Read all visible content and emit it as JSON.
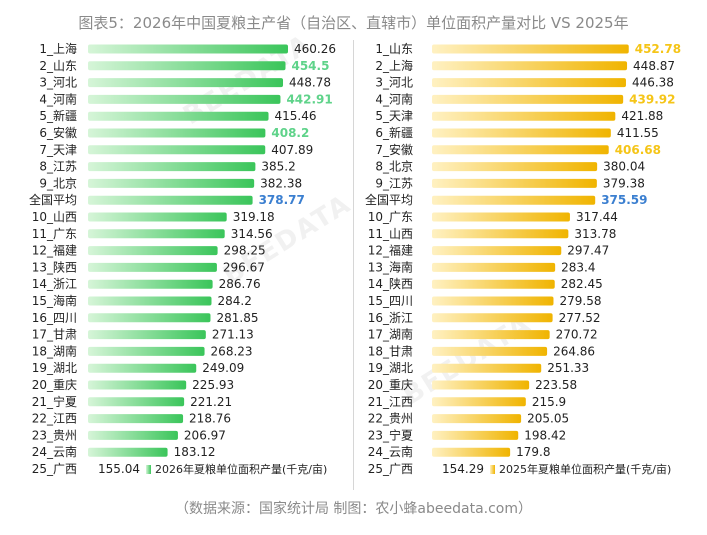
{
  "title": "图表5：2026年中国夏粮主产省（自治区、直辖市）单位面积产量对比 VS 2025年",
  "source": "（数据来源：国家统计局   制图：农小蜂abeedata.com）",
  "watermark": "BEEDATA",
  "colors": {
    "green_light": "#d6f5d8",
    "green_dark": "#3ac55a",
    "gold_light": "#fff1c2",
    "gold_dark": "#f0b400",
    "highlight_green": "#5fd38a",
    "highlight_gold": "#f5c518",
    "average": "#3b7fd0",
    "label": "#222222"
  },
  "chart_data": [
    {
      "type": "bar",
      "orientation": "horizontal",
      "legend": "2026年夏粮单位面积产量(千克/亩)",
      "categories": [
        "1_上海",
        "2_山东",
        "3_河北",
        "4_河南",
        "5_新疆",
        "6_安徽",
        "7_天津",
        "8_江苏",
        "9_北京",
        "全国平均",
        "10_山西",
        "11_广东",
        "12_福建",
        "13_陕西",
        "14_浙江",
        "15_海南",
        "16_四川",
        "17_甘肃",
        "18_湖南",
        "19_湖北",
        "20_重庆",
        "21_宁夏",
        "22_江西",
        "23_贵州",
        "24_云南",
        "25_广西"
      ],
      "values": [
        460.26,
        454.5,
        448.78,
        442.91,
        415.46,
        408.2,
        407.89,
        385.2,
        382.38,
        378.77,
        319.18,
        314.56,
        298.25,
        296.67,
        286.76,
        284.2,
        281.85,
        271.13,
        268.23,
        249.09,
        225.93,
        221.21,
        218.76,
        206.97,
        183.12,
        155.04
      ],
      "value_labels": [
        "460.26",
        "454.5",
        "448.78",
        "442.91",
        "415.46",
        "408.2",
        "407.89",
        "385.2",
        "382.38",
        "378.77",
        "319.18",
        "314.56",
        "298.25",
        "296.67",
        "286.76",
        "284.2",
        "281.85",
        "271.13",
        "268.23",
        "249.09",
        "225.93",
        "221.21",
        "218.76",
        "206.97",
        "183.12",
        "155.04"
      ],
      "highlighted": [
        "2_山东",
        "4_河南",
        "6_安徽"
      ],
      "average_label": "全国平均"
    },
    {
      "type": "bar",
      "orientation": "horizontal",
      "legend": "2025年夏粮单位面积产量(千克/亩)",
      "categories": [
        "1_山东",
        "2_上海",
        "3_河北",
        "4_河南",
        "5_天津",
        "6_新疆",
        "7_安徽",
        "8_北京",
        "9_江苏",
        "全国平均",
        "10_广东",
        "11_山西",
        "12_福建",
        "13_海南",
        "14_陕西",
        "15_四川",
        "16_浙江",
        "17_湖南",
        "18_甘肃",
        "19_湖北",
        "20_重庆",
        "21_江西",
        "22_贵州",
        "23_宁夏",
        "24_云南",
        "25_广西"
      ],
      "values": [
        452.78,
        448.87,
        446.38,
        439.92,
        421.88,
        411.55,
        406.68,
        380.04,
        379.38,
        375.59,
        317.44,
        313.78,
        297.47,
        283.4,
        282.45,
        279.58,
        277.52,
        270.72,
        264.86,
        251.33,
        223.58,
        215.9,
        205.05,
        198.42,
        179.8,
        154.29
      ],
      "value_labels": [
        "452.78",
        "448.87",
        "446.38",
        "439.92",
        "421.88",
        "411.55",
        "406.68",
        "380.04",
        "379.38",
        "375.59",
        "317.44",
        "313.78",
        "297.47",
        "283.4",
        "282.45",
        "279.58",
        "277.52",
        "270.72",
        "264.86",
        "251.33",
        "223.58",
        "215.9",
        "205.05",
        "198.42",
        "179.8",
        "154.29"
      ],
      "highlighted": [
        "1_山东",
        "4_河南",
        "7_安徽"
      ],
      "average_label": "全国平均"
    }
  ]
}
